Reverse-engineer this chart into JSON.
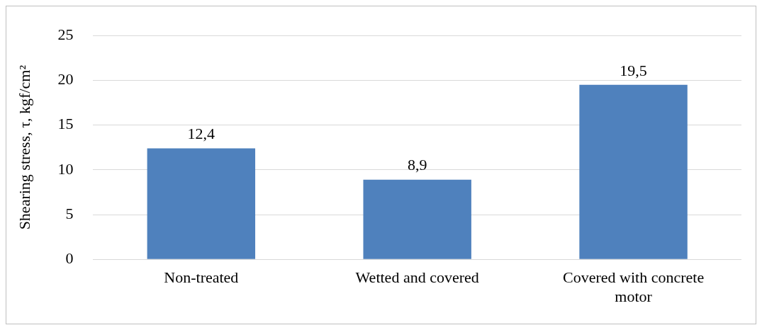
{
  "chart_data": {
    "type": "bar",
    "ylabel": "Shearing stress, τ, kgf/cm²",
    "categories": [
      "Non-treated",
      "Wetted and covered",
      "Covered with concrete motor"
    ],
    "values": [
      12.4,
      8.9,
      19.5
    ],
    "value_labels": [
      "12,4",
      "8,9",
      "19,5"
    ],
    "color": "#4f81bd",
    "ylim": [
      0,
      25
    ],
    "yticks": [
      0,
      5,
      10,
      15,
      20,
      25
    ],
    "grid": "y",
    "legend": false
  }
}
